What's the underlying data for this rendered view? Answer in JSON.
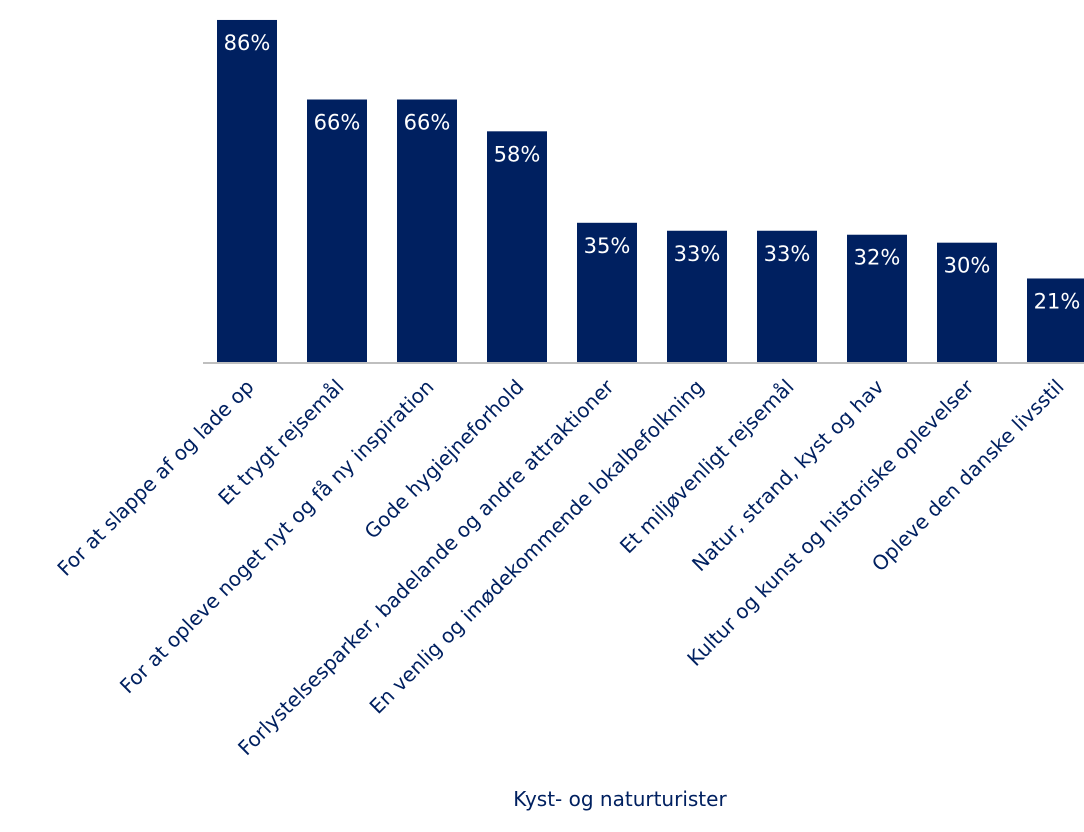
{
  "chart_data": {
    "type": "bar",
    "categories": [
      "For at slappe af og lade op",
      "Et trygt rejsemål",
      "For at opleve noget nyt og få ny inspiration",
      "Gode hygiejneforhold",
      "Forlystelsesparker, badelande og andre attraktioner",
      "En venlig og imødekommende lokalbefolkning",
      "Et miljøvenligt rejsemål",
      "Natur, strand, kyst og hav",
      "Kultur og kunst og historiske oplevelser",
      "Opleve den danske livsstil"
    ],
    "values": [
      86,
      66,
      66,
      58,
      35,
      33,
      33,
      32,
      30,
      21
    ],
    "value_labels": [
      "86%",
      "66%",
      "66%",
      "58%",
      "35%",
      "33%",
      "33%",
      "32%",
      "30%",
      "21%"
    ],
    "title": "",
    "xlabel": "Kyst- og naturturister",
    "ylabel": "",
    "ylim": [
      0,
      88
    ],
    "grid": false,
    "legend": "none",
    "bar_color": "#002060",
    "label_color": "#002060",
    "value_label_color": "#ffffff"
  }
}
